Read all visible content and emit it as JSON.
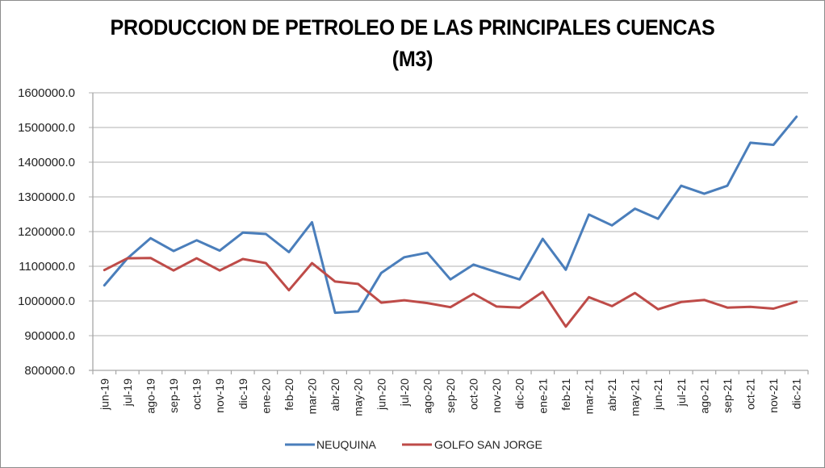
{
  "chart_data": {
    "type": "line",
    "title": "PRODUCCION DE PETROLEO DE LAS PRINCIPALES CUENCAS",
    "subtitle": "(M3)",
    "xlabel": "",
    "ylabel": "",
    "ylim": [
      800000,
      1600000
    ],
    "ytick_step": 100000,
    "ytick_labels": [
      "800000.0",
      "900000.0",
      "1000000.0",
      "1100000.0",
      "1200000.0",
      "1300000.0",
      "1400000.0",
      "1500000.0",
      "1600000.0"
    ],
    "grid": true,
    "legend_position": "bottom",
    "categories": [
      "jun-19",
      "jul-19",
      "ago-19",
      "sep-19",
      "oct-19",
      "nov-19",
      "dic-19",
      "ene-20",
      "feb-20",
      "mar-20",
      "abr-20",
      "may-20",
      "jun-20",
      "jul-20",
      "ago-20",
      "sep-20",
      "oct-20",
      "nov-20",
      "dic-20",
      "ene-21",
      "feb-21",
      "mar-21",
      "abr-21",
      "may-21",
      "jun-21",
      "jul-21",
      "ago-21",
      "sep-21",
      "oct-21",
      "nov-21",
      "dic-21"
    ],
    "series": [
      {
        "name": "NEUQUINA",
        "color": "#4a7ebb",
        "values": [
          1045000,
          1123000,
          1181000,
          1144000,
          1175000,
          1145000,
          1197000,
          1193000,
          1141000,
          1227000,
          966000,
          970000,
          1081000,
          1126000,
          1139000,
          1062000,
          1105000,
          1083000,
          1062000,
          1179000,
          1090000,
          1249000,
          1218000,
          1266000,
          1237000,
          1332000,
          1309000,
          1332000,
          1456000,
          1450000,
          1531000
        ]
      },
      {
        "name": "GOLFO SAN JORGE",
        "color": "#be4b48",
        "values": [
          1089000,
          1123000,
          1124000,
          1088000,
          1123000,
          1088000,
          1121000,
          1109000,
          1031000,
          1109000,
          1056000,
          1049000,
          995000,
          1002000,
          994000,
          982000,
          1021000,
          984000,
          981000,
          1026000,
          926000,
          1011000,
          985000,
          1023000,
          976000,
          997000,
          1003000,
          981000,
          983000,
          978000,
          998000
        ]
      }
    ]
  }
}
